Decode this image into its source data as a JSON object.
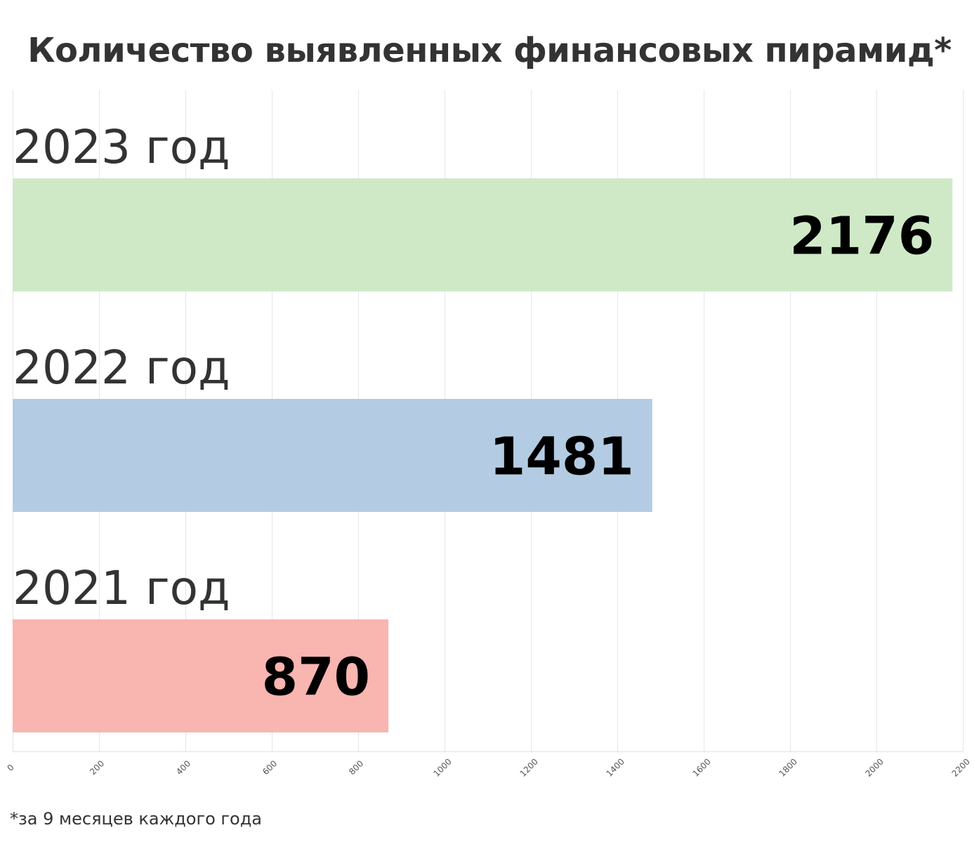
{
  "chart_data": {
    "type": "bar",
    "orientation": "horizontal",
    "title": "Количество выявленных финансовых пирамид*",
    "categories": [
      "2023 год",
      "2022 год",
      "2021 год"
    ],
    "values": [
      2176,
      1481,
      870
    ],
    "value_labels": [
      "2176",
      "1481",
      "870"
    ],
    "colors": [
      "#cfe9c7",
      "#b3cce3",
      "#f9b5b0"
    ],
    "xlim": [
      0,
      2200
    ],
    "xticks": [
      0,
      200,
      400,
      600,
      800,
      1000,
      1200,
      1400,
      1600,
      1800,
      2000,
      2200
    ],
    "xtick_labels": [
      "0",
      "200",
      "400",
      "600",
      "800",
      "1000",
      "1200",
      "1400",
      "1600",
      "1800",
      "2000",
      "2200"
    ],
    "grid": true,
    "legend": "none",
    "footnote": "*за 9 месяцев каждого года"
  }
}
